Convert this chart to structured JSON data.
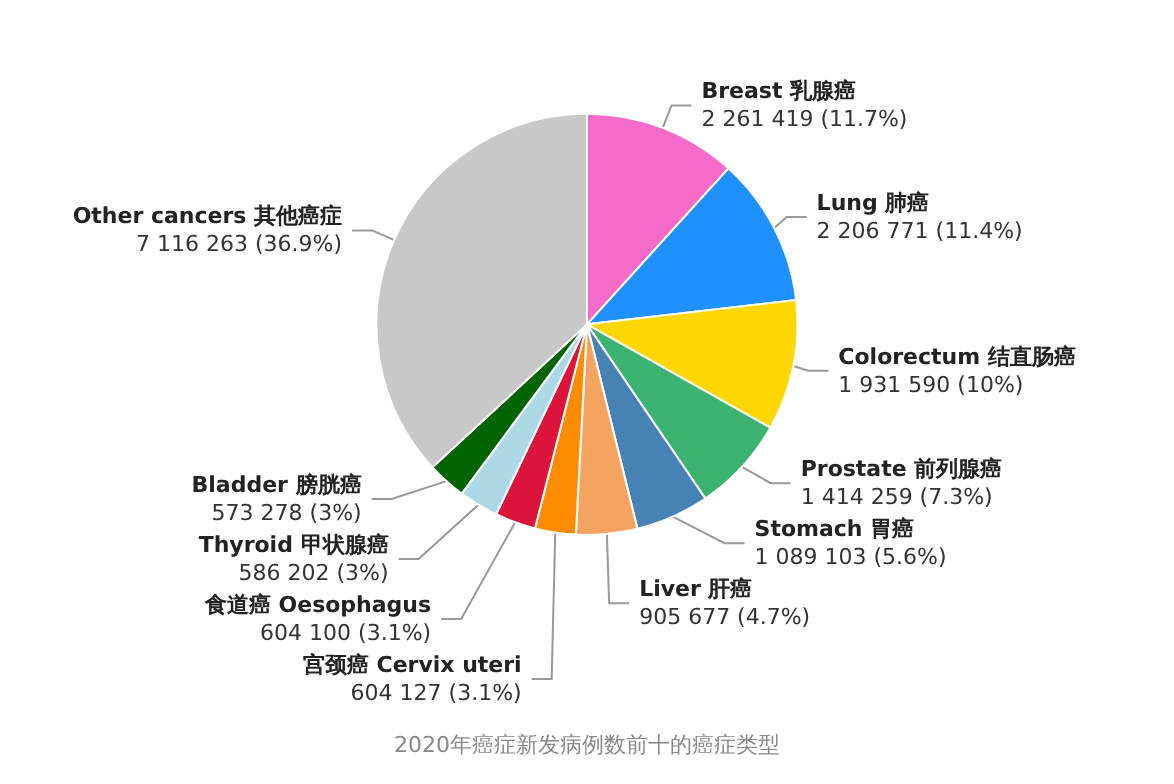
{
  "chart_data": {
    "type": "pie",
    "annotations": [
      "2020年癌症新发病例数前十的癌症类型"
    ],
    "categories": [
      "Breast 乳腺癌",
      "Lung 肺癌",
      "Colorectum 结直肠癌",
      "Prostate 前列腺癌",
      "Stomach 胃癌",
      "Liver 肝癌",
      "宫颈癌 Cervix uteri",
      "食道癌 Oesophagus",
      "Thyroid 甲状腺癌",
      "Bladder 膀胱癌",
      "Other cancers 其他癌症"
    ],
    "values": [
      2261419,
      2206771,
      1931590,
      1414259,
      1089103,
      905677,
      604127,
      604100,
      586202,
      573278,
      7116263
    ],
    "value_labels": [
      "2 261 419 (11.7%)",
      "2 206 771 (11.4%)",
      "1 931 590 (10%)",
      "1 414 259 (7.3%)",
      "1 089 103 (5.6%)",
      "905 677 (4.7%)",
      "604 127 (3.1%)",
      "604 100 (3.1%)",
      "586 202 (3%)",
      "573 278 (3%)",
      "7 116 263 (36.9%)"
    ],
    "colors": [
      "#f56cc8",
      "#1e90ff",
      "#ffd700",
      "#3cb371",
      "#4682b4",
      "#f4a460",
      "#ff8c00",
      "#dc143c",
      "#add8e6",
      "#006400",
      "#c8c8c8"
    ],
    "legend": false
  }
}
